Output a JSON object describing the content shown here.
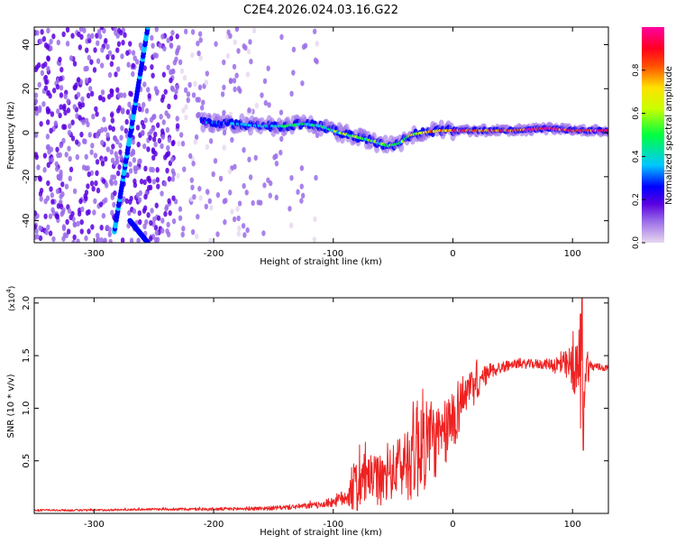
{
  "title": "C2E4.2026.024.03.16.G22",
  "chart_data": [
    {
      "type": "heatmap",
      "name": "spectrogram",
      "xlabel": "Height of straight line (km)",
      "ylabel": "Frequency (Hz)",
      "xlim": [
        -350,
        130
      ],
      "ylim": [
        -50,
        48
      ],
      "xticks": [
        -300,
        -200,
        -100,
        0,
        100
      ],
      "xtick_labels": [
        "-300",
        "-200",
        "-100",
        "0",
        "100"
      ],
      "yticks": [
        -40,
        -20,
        0,
        20,
        40
      ],
      "ytick_labels": [
        "-40",
        "-20",
        "0",
        "20",
        "40"
      ],
      "colorbar": {
        "label": "Normalized spectral amplitude",
        "range": [
          0,
          1
        ],
        "ticks": [
          0,
          0.2,
          0.4,
          0.6,
          0.8
        ],
        "tick_labels": [
          "0.0",
          "0.2",
          "0.4",
          "0.6",
          "0.8"
        ],
        "colormap": [
          "#e8d8f0",
          "#9a6ce8",
          "#5a00e0",
          "#0000ff",
          "#00c8ff",
          "#00ff40",
          "#c8ff00",
          "#ffe000",
          "#ff5000",
          "#ff0020",
          "#ff00a0"
        ]
      },
      "ridge": {
        "x": [
          -210,
          -180,
          -160,
          -140,
          -125,
          -110,
          -95,
          -80,
          -65,
          -55,
          -45,
          -35,
          -25,
          -10,
          0,
          20,
          50,
          80,
          100,
          130
        ],
        "y": [
          5,
          4,
          3,
          3,
          4,
          3,
          0,
          -2,
          -4,
          -6,
          -5,
          -1,
          0,
          1,
          1,
          1,
          1,
          2,
          1,
          1
        ],
        "amplitude": [
          0.3,
          0.35,
          0.4,
          0.45,
          0.45,
          0.45,
          0.5,
          0.55,
          0.5,
          0.45,
          0.5,
          0.6,
          0.7,
          0.75,
          0.85,
          0.8,
          0.85,
          0.95,
          0.9,
          0.85
        ]
      },
      "diagonal_streaks": [
        {
          "x": [
            -283,
            -255
          ],
          "y": [
            -45,
            48
          ]
        },
        {
          "x": [
            -270,
            -255
          ],
          "y": [
            -40,
            -50
          ]
        }
      ]
    },
    {
      "type": "line",
      "name": "snr",
      "xlabel": "Height of straight line (km)",
      "ylabel": "SNR (10 * v/v)",
      "y_multiplier": "(x10^4)",
      "y_multiplier_base": "(x10",
      "y_multiplier_exp": "4",
      "y_multiplier_close": ")",
      "xlim": [
        -350,
        130
      ],
      "ylim": [
        0,
        2.05
      ],
      "xticks": [
        -300,
        -200,
        -100,
        0,
        100
      ],
      "xtick_labels": [
        "-300",
        "-200",
        "-100",
        "0",
        "100"
      ],
      "yticks": [
        0.5,
        1.0,
        1.5,
        2.0
      ],
      "ytick_labels": [
        "0.5",
        "1.0",
        "1.5",
        "2.0"
      ],
      "color": "#ee2222",
      "series_envelope": {
        "x": [
          -350,
          -300,
          -250,
          -200,
          -150,
          -110,
          -90,
          -80,
          -70,
          -60,
          -50,
          -40,
          -30,
          -20,
          -10,
          0,
          10,
          20,
          30,
          50,
          80,
          95,
          100,
          105,
          107,
          109,
          111,
          115,
          130
        ],
        "y_center": [
          0.03,
          0.03,
          0.04,
          0.04,
          0.05,
          0.08,
          0.15,
          0.28,
          0.35,
          0.3,
          0.4,
          0.48,
          0.65,
          0.72,
          0.68,
          0.9,
          1.15,
          1.2,
          1.35,
          1.42,
          1.42,
          1.4,
          1.38,
          1.35,
          1.4,
          1.45,
          1.4,
          1.4,
          1.38
        ],
        "y_amplitude": [
          0.01,
          0.01,
          0.01,
          0.015,
          0.02,
          0.03,
          0.08,
          0.3,
          0.2,
          0.25,
          0.25,
          0.35,
          0.55,
          0.45,
          0.3,
          0.35,
          0.2,
          0.15,
          0.08,
          0.04,
          0.05,
          0.15,
          0.25,
          0.25,
          0.7,
          0.6,
          0.3,
          0.05,
          0.03
        ]
      }
    }
  ]
}
